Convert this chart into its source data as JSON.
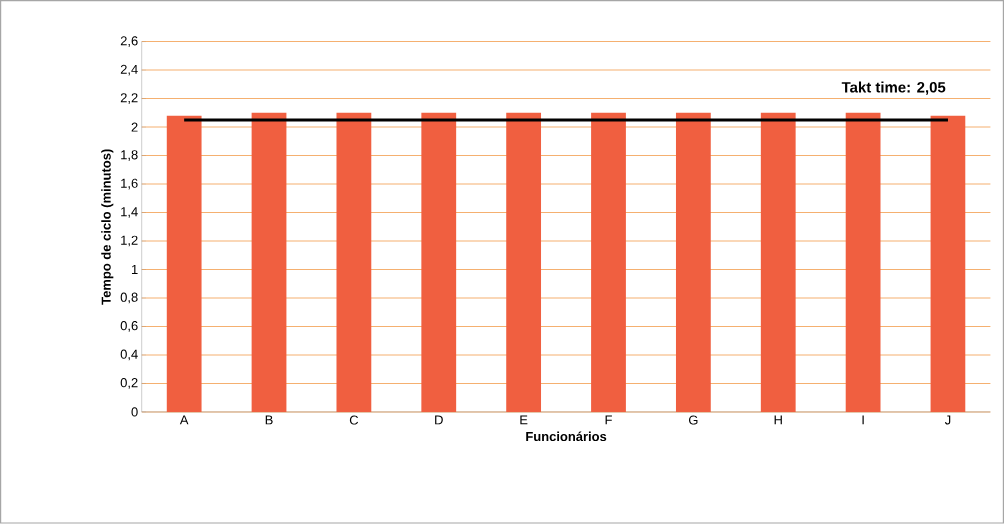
{
  "chart_data": {
    "type": "bar",
    "xlabel": "Funcionários",
    "ylabel": "Tempo de ciclo (minutos)",
    "categories": [
      "A",
      "B",
      "C",
      "D",
      "E",
      "F",
      "G",
      "H",
      "I",
      "J"
    ],
    "values": [
      2.08,
      2.1,
      2.1,
      2.1,
      2.1,
      2.1,
      2.1,
      2.1,
      2.1,
      2.08
    ],
    "color": "#f05f40",
    "ylim": [
      0,
      2.6
    ],
    "yticks": [
      0,
      {
        "value": 0.2,
        "label": "0,2"
      },
      {
        "value": 0.4,
        "label": "0,4"
      },
      {
        "value": 0.6,
        "label": "0,6"
      },
      {
        "value": 0.8,
        "label": "0,8"
      },
      1,
      {
        "value": 1.2,
        "label": "1,2"
      },
      {
        "value": 1.4,
        "label": "1,4"
      },
      {
        "value": 1.6,
        "label": "1,6"
      },
      {
        "value": 1.8,
        "label": "1,8"
      },
      2,
      {
        "value": 2.2,
        "label": "2,2"
      },
      {
        "value": 2.4,
        "label": "2,4"
      },
      {
        "value": 2.6,
        "label": "2,6"
      }
    ],
    "grid": "y",
    "ref_lines": [
      {
        "axis": "y",
        "value": 2.05,
        "label": "Takt time: 2,05",
        "color": "#000000"
      }
    ]
  }
}
